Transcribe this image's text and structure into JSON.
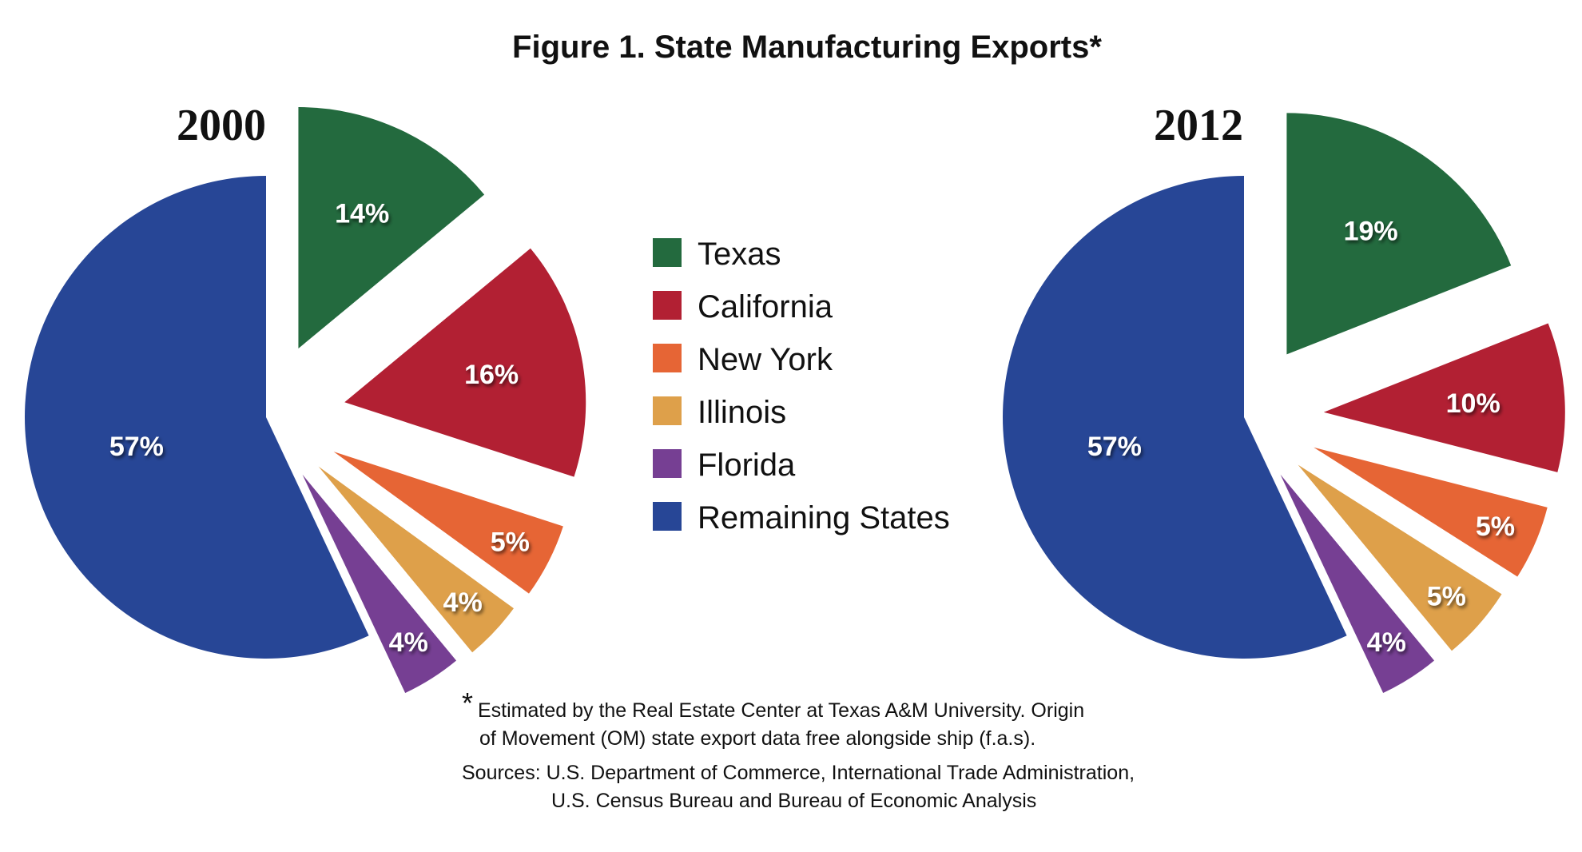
{
  "chart_data": [
    {
      "type": "pie",
      "title": "2000",
      "categories": [
        "Texas",
        "California",
        "New York",
        "Illinois",
        "Florida",
        "Remaining States"
      ],
      "values": [
        14,
        16,
        5,
        4,
        4,
        57
      ],
      "labels": [
        "14%",
        "16%",
        "5%",
        "4%",
        "4%",
        "57%"
      ]
    },
    {
      "type": "pie",
      "title": "2012",
      "categories": [
        "Texas",
        "California",
        "New York",
        "Illinois",
        "Florida",
        "Remaining States"
      ],
      "values": [
        19,
        10,
        5,
        5,
        4,
        57
      ],
      "labels": [
        "19%",
        "10%",
        "5%",
        "5%",
        "4%",
        "57%"
      ]
    }
  ],
  "figure_title": "Figure 1. State Manufacturing Exports*",
  "legend": [
    {
      "label": "Texas",
      "color": "#236a3e"
    },
    {
      "label": "California",
      "color": "#b22033"
    },
    {
      "label": "New York",
      "color": "#e66535"
    },
    {
      "label": "Illinois",
      "color": "#dea04a"
    },
    {
      "label": "Florida",
      "color": "#763f93"
    },
    {
      "label": "Remaining States",
      "color": "#274696"
    }
  ],
  "footnote": {
    "asterisk": "*",
    "line1": "Estimated by the Real Estate Center at Texas A&M University. Origin",
    "line2": "of Movement (OM) state export data free alongside ship (f.a.s).",
    "sources1": "Sources: U.S. Department of Commerce, International Trade Administration,",
    "sources2": "U.S. Census Bureau and Bureau of Economic Analysis"
  }
}
